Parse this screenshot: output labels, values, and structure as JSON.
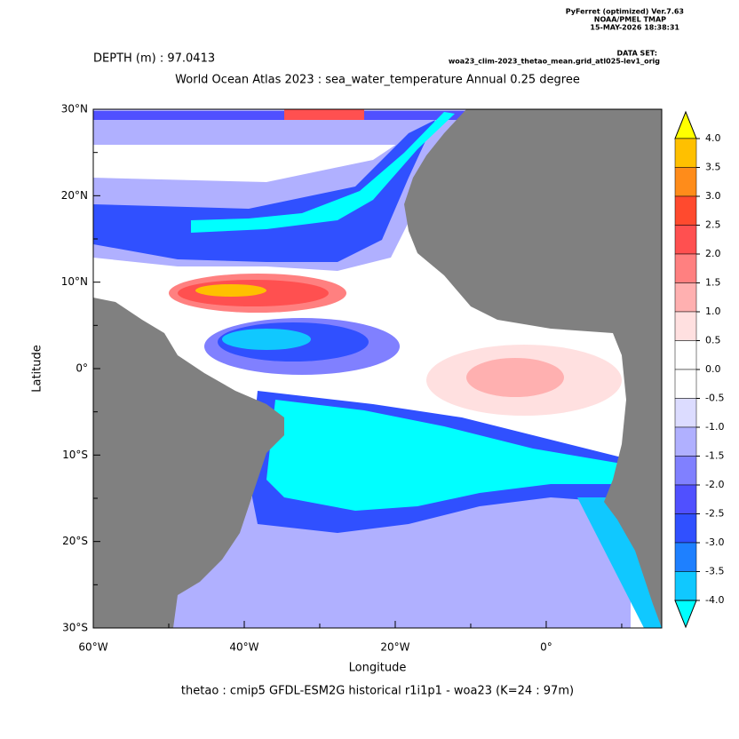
{
  "header": {
    "software": [
      "PyFerret (optimized) Ver.7.63",
      "NOAA/PMEL TMAP",
      "15-MAY-2026 18:38:31"
    ],
    "dataset_label": "DATA SET:",
    "dataset": "woa23_clim-2023_thetao_mean.grid_atl025-lev1_orig"
  },
  "depth": "DEPTH (m) : 97.0413",
  "title": "World Ocean Atlas 2023 : sea_water_temperature Annual  0.25 degree",
  "footer": "thetao : cmip5 GFDL-ESM2G historical r1i1p1 - woa23  (K=24 : 97m)",
  "map": {
    "xlabel": "Longitude",
    "ylabel": "Latitude",
    "xlim": [
      -60,
      15.3
    ],
    "ylim": [
      -30,
      30
    ],
    "xticks": [
      {
        "value": -60,
        "label": "60°W"
      },
      {
        "value": -40,
        "label": "40°W"
      },
      {
        "value": -20,
        "label": "20°W"
      },
      {
        "value": 0,
        "label": "0°"
      }
    ],
    "xminorticks": [
      -50,
      -30,
      -10,
      10
    ],
    "yticks": [
      {
        "value": 30,
        "label": "30°N"
      },
      {
        "value": 20,
        "label": "20°N"
      },
      {
        "value": 10,
        "label": "10°N"
      },
      {
        "value": 0,
        "label": "0°"
      },
      {
        "value": -10,
        "label": "10°S"
      },
      {
        "value": -20,
        "label": "20°S"
      },
      {
        "value": -30,
        "label": "30°S"
      }
    ],
    "yminorticks": [
      25,
      15,
      5,
      -5,
      -15,
      -25
    ],
    "land_color": "#808080"
  },
  "colorbar": {
    "levels": [
      {
        "value": 4,
        "label": "4.0"
      },
      {
        "value": 3.5,
        "label": "3.5"
      },
      {
        "value": 3,
        "label": "3.0"
      },
      {
        "value": 2.5,
        "label": "2.5"
      },
      {
        "value": 2,
        "label": "2.0"
      },
      {
        "value": 1.5,
        "label": "1.5"
      },
      {
        "value": 1,
        "label": "1.0"
      },
      {
        "value": 0.5,
        "label": "0.5"
      },
      {
        "value": 0,
        "label": "0.0"
      },
      {
        "value": -0.5,
        "label": "-0.5"
      },
      {
        "value": -1,
        "label": "-1.0"
      },
      {
        "value": -1.5,
        "label": "-1.5"
      },
      {
        "value": -2,
        "label": "-2.0"
      },
      {
        "value": -2.5,
        "label": "-2.5"
      },
      {
        "value": -3,
        "label": "-3.0"
      },
      {
        "value": -3.5,
        "label": "-3.5"
      },
      {
        "value": -4,
        "label": "-4.0"
      }
    ],
    "colors": [
      "#ffff00",
      "#ffc000",
      "#ff8c1a",
      "#ff4a2e",
      "#ff5050",
      "#ff8080",
      "#ffb0b0",
      "#ffe0e0",
      "#ffffff",
      "#ffffff",
      "#dcdcff",
      "#b0b0ff",
      "#8080ff",
      "#5050ff",
      "#3050ff",
      "#1e80ff",
      "#10c8ff",
      "#00ffff"
    ]
  }
}
